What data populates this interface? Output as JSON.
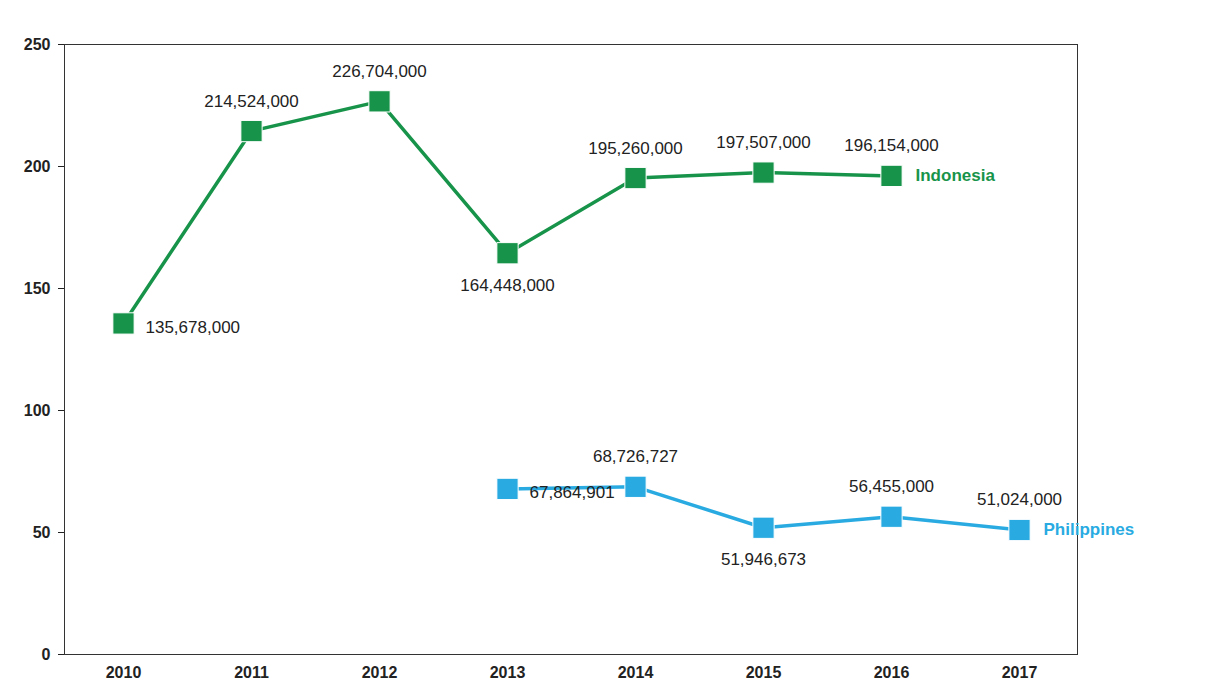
{
  "chart_data": {
    "type": "line",
    "categories": [
      "2010",
      "2011",
      "2012",
      "2013",
      "2014",
      "2015",
      "2016",
      "2017"
    ],
    "ylim": [
      0,
      250
    ],
    "yticks": [
      0,
      50,
      100,
      150,
      200,
      250
    ],
    "grid": false,
    "data_labels": true,
    "series": [
      {
        "name": "Indonesia",
        "color": "#18944a",
        "marker": "square",
        "values": [
          135.678,
          214.524,
          226.704,
          164.448,
          195.26,
          197.507,
          196.154,
          null
        ],
        "value_labels": [
          "135,678,000",
          "214,524,000",
          "226,704,000",
          "164,448,000",
          "195,260,000",
          "197,507,000",
          "196,154,000",
          null
        ]
      },
      {
        "name": "Philippines",
        "color": "#29abe2",
        "marker": "square",
        "values": [
          null,
          null,
          null,
          67.864901,
          68.726727,
          51.946673,
          56.455,
          51.024
        ],
        "value_labels": [
          null,
          null,
          null,
          "67,864,901",
          "68,726,727",
          "51,946,673",
          "56,455,000",
          "51,024,000"
        ]
      }
    ]
  }
}
